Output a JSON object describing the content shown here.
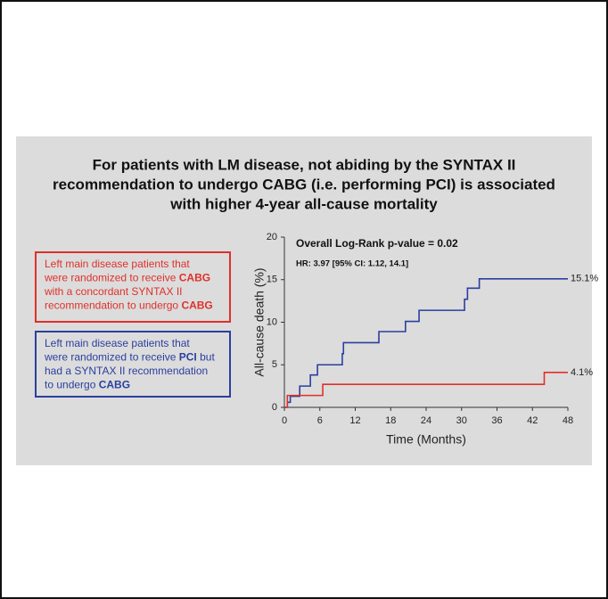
{
  "chart_data": {
    "type": "step-line",
    "title": [
      "For patients with LM disease, not abiding by the SYNTAX II",
      "recommendation to undergo CABG (i.e. performing PCI) is associated",
      "with higher 4-year all-cause mortality"
    ],
    "legend_boxes": [
      {
        "color": "#e0302a",
        "lines": [
          [
            {
              "text": "Left main disease patients that"
            }
          ],
          [
            {
              "text": "were randomized to receive "
            },
            {
              "text": "CABG",
              "bold": true
            }
          ],
          [
            {
              "text": "with a concordant SYNTAX II"
            }
          ],
          [
            {
              "text": "recommendation to undergo "
            },
            {
              "text": "CABG",
              "bold": true
            }
          ]
        ]
      },
      {
        "color": "#2b3f9e",
        "lines": [
          [
            {
              "text": "Left main disease patients that"
            }
          ],
          [
            {
              "text": "were randomized to receive "
            },
            {
              "text": "PCI",
              "bold": true
            },
            {
              "text": " but"
            }
          ],
          [
            {
              "text": "had a SYNTAX II recommendation"
            }
          ],
          [
            {
              "text": "to undergo "
            },
            {
              "text": "CABG",
              "bold": true
            }
          ]
        ]
      }
    ],
    "annotations": [
      "Overall Log-Rank p-value = 0.02",
      "HR: 3.97 [95% CI: 1.12, 14.1]"
    ],
    "x_label": "Time (Months)",
    "y_label": "All-cause death (%)",
    "xlim": [
      0,
      48
    ],
    "ylim": [
      0,
      20
    ],
    "xticks": [
      0,
      6,
      12,
      18,
      24,
      30,
      36,
      42,
      48
    ],
    "yticks": [
      0,
      5,
      10,
      15,
      20
    ],
    "series": [
      {
        "color": "#2b3f9e",
        "end_label": "15.1%",
        "x": [
          0,
          0.5,
          0.5,
          1,
          1,
          2.6,
          2.6,
          4.4,
          4.4,
          5.6,
          5.6,
          9.8,
          9.8,
          10,
          10,
          16,
          16,
          20.5,
          20.5,
          22.8,
          22.8,
          30.5,
          30.5,
          31,
          31,
          33,
          33,
          48
        ],
        "values": [
          0,
          0,
          0.6,
          0.6,
          1.3,
          1.3,
          2.5,
          2.5,
          3.8,
          3.8,
          5.0,
          5.0,
          6.3,
          6.3,
          7.6,
          7.6,
          8.9,
          8.9,
          10.1,
          10.1,
          11.4,
          11.4,
          12.7,
          12.7,
          14.0,
          14.0,
          15.1,
          15.1
        ]
      },
      {
        "color": "#e0302a",
        "end_label": "4.1%",
        "x": [
          0,
          0.5,
          0.5,
          6.5,
          6.5,
          44,
          44,
          48
        ],
        "values": [
          0,
          0,
          1.4,
          1.4,
          2.7,
          2.7,
          4.1,
          4.1
        ]
      }
    ]
  }
}
